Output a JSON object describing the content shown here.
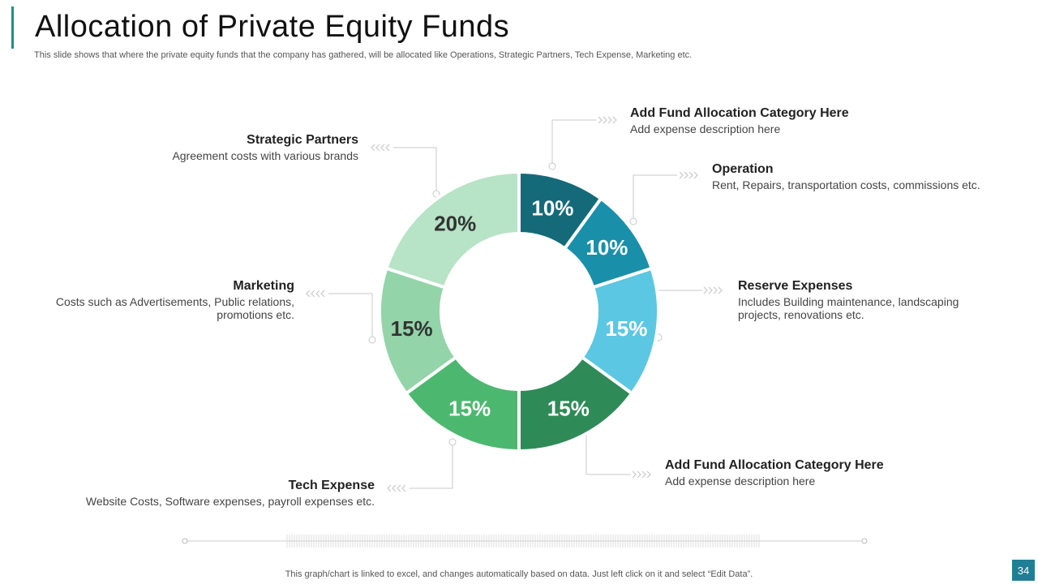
{
  "slide": {
    "title": "Allocation of Private Equity Funds",
    "subtitle": "This slide shows that where the private equity funds that the company has gathered, will be allocated like Operations, Strategic Partners, Tech Expense, Marketing etc.",
    "footer": "This graph/chart is linked to excel,  and changes automatically based on data. Just left click on it and select “Edit Data”.",
    "page_number": "34"
  },
  "chart_data": {
    "type": "pie",
    "donut": true,
    "categories": [
      "Add Fund Allocation Category Here",
      "Operation",
      "Reserve Expenses",
      "Add Fund Allocation Category Here",
      "Tech Expense",
      "Marketing",
      "Strategic Partners"
    ],
    "values": [
      10,
      10,
      15,
      15,
      15,
      15,
      20
    ],
    "value_labels": [
      "10%",
      "10%",
      "15%",
      "15%",
      "15%",
      "15%",
      "20%"
    ],
    "colors": [
      "#156a7a",
      "#1a8faa",
      "#5bc7e3",
      "#2e8b57",
      "#4cb86f",
      "#93d4a9",
      "#b7e3c6"
    ],
    "label_colors": [
      "#ffffff",
      "#ffffff",
      "#ffffff",
      "#ffffff",
      "#ffffff",
      "#333333",
      "#333333"
    ]
  },
  "callouts": [
    {
      "heading": "Add Fund Allocation Category Here",
      "description": "Add expense description here"
    },
    {
      "heading": "Operation",
      "description": "Rent, Repairs, transportation costs, commissions etc."
    },
    {
      "heading": "Reserve Expenses",
      "description": "Includes Building maintenance, landscaping projects, renovations etc."
    },
    {
      "heading": "Add Fund Allocation Category Here",
      "description": "Add expense description here"
    },
    {
      "heading": "Tech Expense",
      "description": "Website Costs, Software expenses, payroll expenses etc."
    },
    {
      "heading": "Marketing",
      "description": "Costs such as Advertisements, Public relations, promotions etc."
    },
    {
      "heading": "Strategic Partners",
      "description": "Agreement costs with various brands"
    }
  ]
}
